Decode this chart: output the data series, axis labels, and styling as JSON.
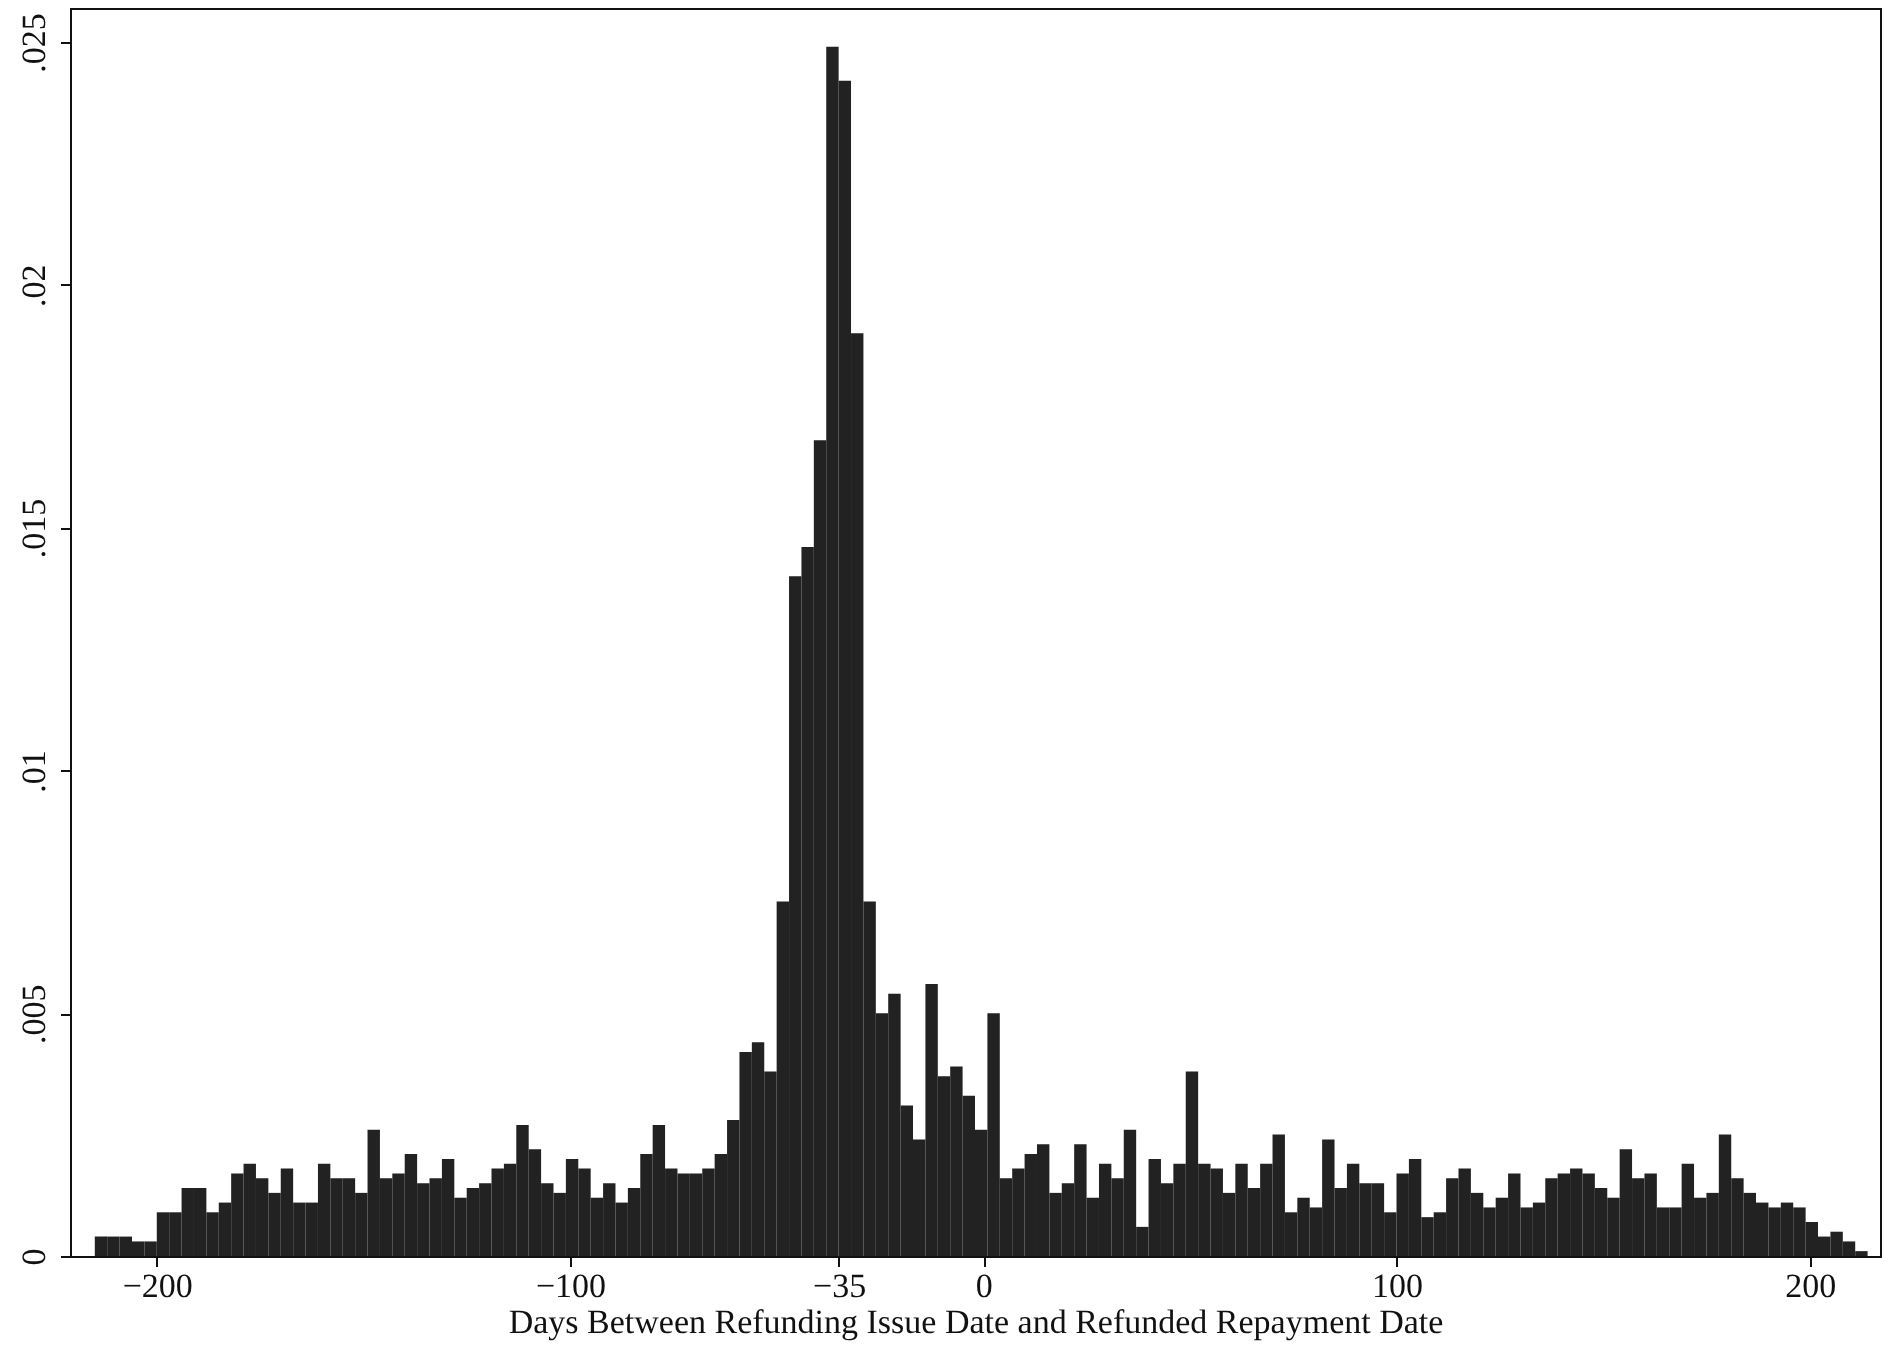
{
  "chart_data": {
    "type": "histogram",
    "xlabel": "Days Between Refunding Issue Date and Refunded Repayment Date",
    "bins": [
      -215,
      -212,
      -209,
      -206,
      -203,
      -200,
      -197,
      -194,
      -191,
      -188,
      -185,
      -182,
      -179,
      -176,
      -173,
      -170,
      -167,
      -164,
      -161,
      -158,
      -155,
      -152,
      -149,
      -146,
      -143,
      -140,
      -137,
      -134,
      -131,
      -128,
      -125,
      -122,
      -119,
      -116,
      -113,
      -110,
      -107,
      -104,
      -101,
      -98,
      -95,
      -92,
      -89,
      -86,
      -83,
      -80,
      -77,
      -74,
      -71,
      -68,
      -65,
      -62,
      -59,
      -56,
      -53,
      -50,
      -47,
      -44,
      -41,
      -38,
      -35,
      -32,
      -29,
      -26,
      -23,
      -20,
      -17,
      -14,
      -11,
      -8,
      -5,
      -2,
      1,
      4,
      7,
      10,
      13,
      16,
      19,
      22,
      25,
      28,
      31,
      34,
      37,
      40,
      43,
      46,
      49,
      52,
      55,
      58,
      61,
      64,
      67,
      70,
      73,
      76,
      79,
      82,
      85,
      88,
      91,
      94,
      97,
      100,
      103,
      106,
      109,
      112,
      115,
      118,
      121,
      124,
      127,
      130,
      133,
      136,
      139,
      142,
      145,
      148,
      151,
      154,
      157,
      160,
      163,
      166,
      169,
      172,
      175,
      178,
      181,
      184,
      187,
      190,
      193,
      196,
      199,
      202,
      205,
      208,
      211,
      214
    ],
    "values": [
      0.0004,
      0.0004,
      0.0004,
      0.0003,
      0.0003,
      0.0009,
      0.0009,
      0.0014,
      0.0014,
      0.0009,
      0.0011,
      0.0017,
      0.0019,
      0.0016,
      0.0013,
      0.0018,
      0.0011,
      0.0011,
      0.0019,
      0.0016,
      0.0016,
      0.0013,
      0.0026,
      0.0016,
      0.0017,
      0.0021,
      0.0015,
      0.0016,
      0.002,
      0.0012,
      0.0014,
      0.0015,
      0.0018,
      0.0019,
      0.0027,
      0.0022,
      0.0015,
      0.0013,
      0.002,
      0.0018,
      0.0012,
      0.0015,
      0.0011,
      0.0014,
      0.0021,
      0.0027,
      0.0018,
      0.0017,
      0.0017,
      0.0018,
      0.0021,
      0.0028,
      0.0042,
      0.0044,
      0.0038,
      0.0073,
      0.014,
      0.0146,
      0.0168,
      0.0249,
      0.0242,
      0.019,
      0.0073,
      0.005,
      0.0054,
      0.0031,
      0.0024,
      0.0056,
      0.0037,
      0.0039,
      0.0033,
      0.0026,
      0.005,
      0.0016,
      0.0018,
      0.0021,
      0.0023,
      0.0013,
      0.0015,
      0.0023,
      0.0012,
      0.0019,
      0.0016,
      0.0026,
      0.0006,
      0.002,
      0.0015,
      0.0019,
      0.0038,
      0.0019,
      0.0018,
      0.0013,
      0.0019,
      0.0014,
      0.0019,
      0.0025,
      0.0009,
      0.0012,
      0.001,
      0.0024,
      0.0014,
      0.0019,
      0.0015,
      0.0015,
      0.0009,
      0.0017,
      0.002,
      0.0008,
      0.0009,
      0.0016,
      0.0018,
      0.0013,
      0.001,
      0.0012,
      0.0017,
      0.001,
      0.0011,
      0.0016,
      0.0017,
      0.0018,
      0.0017,
      0.0014,
      0.0012,
      0.0022,
      0.0016,
      0.0017,
      0.001,
      0.001,
      0.0019,
      0.0012,
      0.0013,
      0.0025,
      0.0016,
      0.0013,
      0.0011,
      0.001,
      0.0011,
      0.001,
      0.0007,
      0.0004,
      0.0005,
      0.0003,
      0.0001
    ],
    "color": "#222222",
    "xlim": [
      -221,
      217
    ],
    "xticks": [
      -200,
      -100,
      -35,
      0,
      100,
      200
    ],
    "ylim": [
      0,
      0.0257
    ],
    "yticks": [
      {
        "value": 0,
        "label": "0"
      },
      {
        "value": 0.005,
        "label": ".005"
      },
      {
        "value": 0.01,
        "label": ".01"
      },
      {
        "value": 0.015,
        "label": ".015"
      },
      {
        "value": 0.02,
        "label": ".02"
      },
      {
        "value": 0.025,
        "label": ".025"
      }
    ]
  }
}
